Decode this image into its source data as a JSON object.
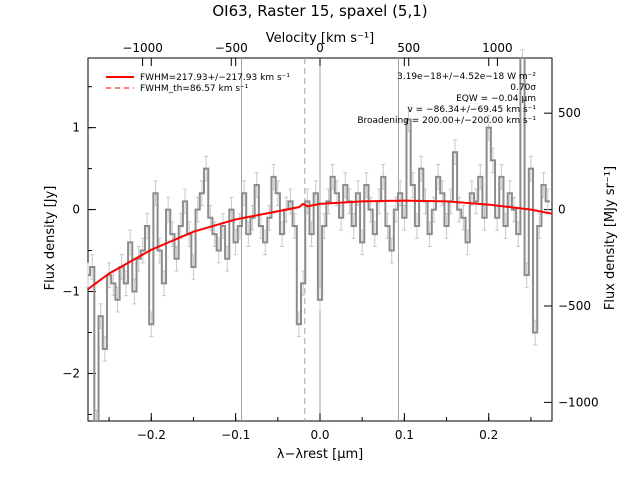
{
  "chart_data": {
    "type": "line",
    "title": "OI63, Raster 15, spaxel (5,1)",
    "xlabel": "λ−λrest [μm]",
    "ylabel_left": "Flux density [Jy]",
    "ylabel_right": "Flux density [MJy sr⁻¹]",
    "xlabel_top": "Velocity [km s⁻¹]",
    "xlim": [
      -0.275,
      0.275
    ],
    "ylim": [
      -2.58,
      1.85
    ],
    "x_ticks": [
      -0.2,
      -0.1,
      0.0,
      0.1,
      0.2
    ],
    "x_tick_labels": [
      "−0.2",
      "−0.1",
      "0.0",
      "0.1",
      "0.2"
    ],
    "y_ticks": [
      -2,
      -1,
      0,
      1
    ],
    "y_tick_labels": [
      "−2",
      "−1",
      "0",
      "1"
    ],
    "top_ticks": [
      -1000,
      -500,
      0,
      500,
      1000
    ],
    "top_tick_labels": [
      "−1000",
      "−500",
      "0",
      "500",
      "1000"
    ],
    "right_ticks": [
      -1000,
      -500,
      0,
      500
    ],
    "right_tick_labels": [
      "−1000",
      "−500",
      "0",
      "500"
    ],
    "right_scale_per_jy": 425,
    "top_scale_km_s_per_um": 4755,
    "vlines_solid": [
      -0.093,
      0.0,
      0.093
    ],
    "vline_dashed": -0.018,
    "legend": [
      {
        "label": "FWHM=217.93+/−217.93 km s⁻¹",
        "style": "solid"
      },
      {
        "label": "FWHM_th=86.57 km s⁻¹",
        "style": "dashed"
      }
    ],
    "annotations": [
      "3.19e−18+/−4.52e−18 W m⁻²",
      "0.70σ",
      "EQW = −0.04 μm",
      "v = −86.34+/−69.45 km s⁻¹",
      "Broadening = 200.00+/−200.00 km s⁻¹"
    ],
    "series": [
      {
        "name": "spectrum",
        "color": "#8c8c8c",
        "x": [
          -0.275,
          -0.27,
          -0.265,
          -0.26,
          -0.255,
          -0.25,
          -0.245,
          -0.24,
          -0.235,
          -0.23,
          -0.225,
          -0.22,
          -0.215,
          -0.21,
          -0.205,
          -0.2,
          -0.195,
          -0.19,
          -0.185,
          -0.18,
          -0.175,
          -0.17,
          -0.165,
          -0.16,
          -0.155,
          -0.15,
          -0.145,
          -0.14,
          -0.135,
          -0.13,
          -0.125,
          -0.12,
          -0.115,
          -0.11,
          -0.105,
          -0.1,
          -0.095,
          -0.09,
          -0.085,
          -0.08,
          -0.075,
          -0.07,
          -0.065,
          -0.06,
          -0.055,
          -0.05,
          -0.045,
          -0.04,
          -0.035,
          -0.03,
          -0.025,
          -0.02,
          -0.015,
          -0.01,
          -0.005,
          0.0,
          0.005,
          0.01,
          0.015,
          0.02,
          0.025,
          0.03,
          0.035,
          0.04,
          0.045,
          0.05,
          0.055,
          0.06,
          0.065,
          0.07,
          0.075,
          0.08,
          0.085,
          0.09,
          0.095,
          0.1,
          0.105,
          0.11,
          0.115,
          0.12,
          0.125,
          0.13,
          0.135,
          0.14,
          0.145,
          0.15,
          0.155,
          0.16,
          0.165,
          0.17,
          0.175,
          0.18,
          0.185,
          0.19,
          0.195,
          0.2,
          0.205,
          0.21,
          0.215,
          0.22,
          0.225,
          0.23,
          0.235,
          0.24,
          0.245,
          0.25,
          0.255,
          0.26,
          0.265,
          0.27
        ],
        "y": [
          -0.8,
          -0.7,
          -2.6,
          -1.3,
          -1.7,
          -0.8,
          -0.9,
          -1.1,
          -0.7,
          -0.9,
          -0.4,
          -1.0,
          -0.6,
          -0.5,
          -0.2,
          -1.4,
          0.2,
          -0.5,
          -0.9,
          0.0,
          -0.3,
          -0.6,
          -0.2,
          0.1,
          -0.3,
          -0.7,
          0.0,
          0.2,
          0.5,
          -0.1,
          -0.3,
          -0.5,
          -0.2,
          -0.6,
          0.0,
          -0.4,
          -0.2,
          0.2,
          -0.3,
          -0.1,
          0.3,
          -0.2,
          -0.4,
          -0.1,
          0.4,
          0.2,
          -0.3,
          0.0,
          0.1,
          -0.2,
          -1.4,
          -0.9,
          0.1,
          -0.3,
          0.2,
          -1.1,
          -0.2,
          0.1,
          0.4,
          0.2,
          -0.1,
          0.3,
          0.1,
          -0.2,
          0.2,
          -0.4,
          0.3,
          0.0,
          -0.3,
          0.1,
          0.4,
          -0.2,
          -0.5,
          0.0,
          0.2,
          -0.1,
          1.1,
          0.3,
          -0.2,
          0.5,
          0.1,
          -0.3,
          0.0,
          0.4,
          0.2,
          -0.2,
          0.1,
          0.7,
          0.0,
          -0.1,
          -0.4,
          0.2,
          0.1,
          0.4,
          -0.1,
          1.0,
          0.6,
          -0.1,
          0.4,
          -0.2,
          0.2,
          0.0,
          -0.3,
          2.1,
          -0.8,
          0.5,
          -1.5,
          -0.2,
          0.3,
          0.1
        ]
      },
      {
        "name": "fit",
        "color": "#ff0000",
        "x": [
          -0.275,
          -0.25,
          -0.2,
          -0.15,
          -0.1,
          -0.05,
          -0.025,
          -0.02,
          -0.015,
          0.0,
          0.05,
          0.1,
          0.15,
          0.2,
          0.25,
          0.275
        ],
        "y": [
          -0.97,
          -0.78,
          -0.49,
          -0.27,
          -0.12,
          -0.02,
          0.03,
          0.07,
          0.04,
          0.07,
          0.1,
          0.11,
          0.1,
          0.06,
          0.0,
          -0.05
        ]
      }
    ]
  }
}
